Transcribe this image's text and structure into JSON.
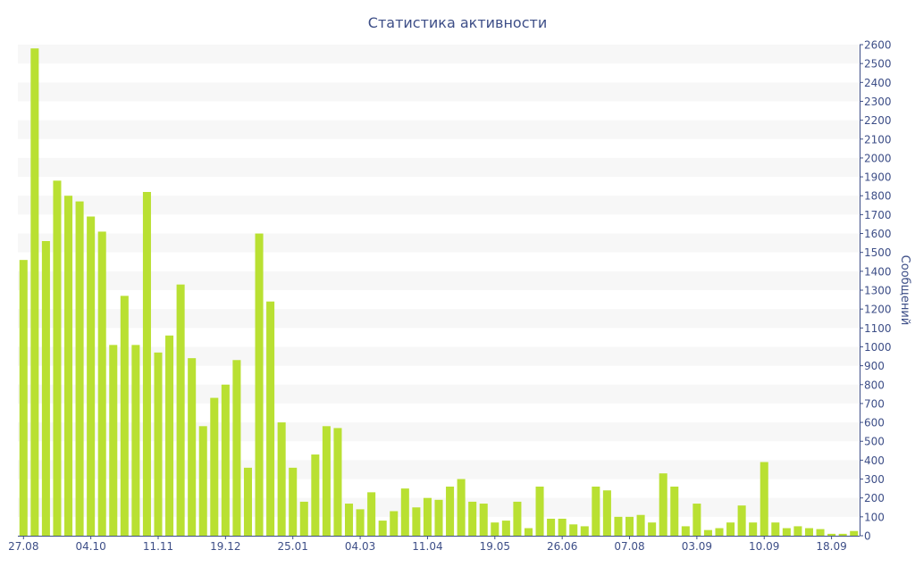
{
  "chart_data": {
    "type": "bar",
    "title": "Статистика активности",
    "ylabel": "Сообщений",
    "xlabel": "",
    "ylim": [
      0,
      2600
    ],
    "y_ticks": [
      0,
      100,
      200,
      300,
      400,
      500,
      600,
      700,
      800,
      900,
      1000,
      1100,
      1200,
      1300,
      1400,
      1500,
      1600,
      1700,
      1800,
      1900,
      2000,
      2100,
      2200,
      2300,
      2400,
      2500,
      2600
    ],
    "y_axis_side": "right",
    "grid": "horizontal-bands",
    "x_tick_labels": [
      {
        "index": 0,
        "label": "27.08"
      },
      {
        "index": 6,
        "label": "04.10"
      },
      {
        "index": 12,
        "label": "11.11"
      },
      {
        "index": 18,
        "label": "19.12"
      },
      {
        "index": 24,
        "label": "25.01"
      },
      {
        "index": 30,
        "label": "04.03"
      },
      {
        "index": 36,
        "label": "11.04"
      },
      {
        "index": 42,
        "label": "19.05"
      },
      {
        "index": 48,
        "label": "26.06"
      },
      {
        "index": 54,
        "label": "07.08"
      },
      {
        "index": 60,
        "label": "03.09"
      },
      {
        "index": 66,
        "label": "10.09"
      },
      {
        "index": 72,
        "label": "18.09"
      }
    ],
    "values": [
      1460,
      2580,
      1560,
      1880,
      1800,
      1770,
      1690,
      1610,
      1010,
      1270,
      1010,
      1820,
      970,
      1060,
      1330,
      940,
      580,
      730,
      800,
      930,
      360,
      1600,
      1240,
      600,
      360,
      180,
      430,
      580,
      570,
      170,
      140,
      230,
      80,
      130,
      250,
      150,
      200,
      190,
      260,
      300,
      180,
      170,
      70,
      80,
      180,
      40,
      260,
      90,
      90,
      60,
      50,
      260,
      240,
      100,
      100,
      110,
      70,
      330,
      260,
      50,
      170,
      30,
      40,
      70,
      160,
      70,
      390,
      70,
      40,
      50,
      40,
      35,
      10,
      10,
      25
    ],
    "bar_color": "#b9e032",
    "text_color": "#3d4e87"
  }
}
